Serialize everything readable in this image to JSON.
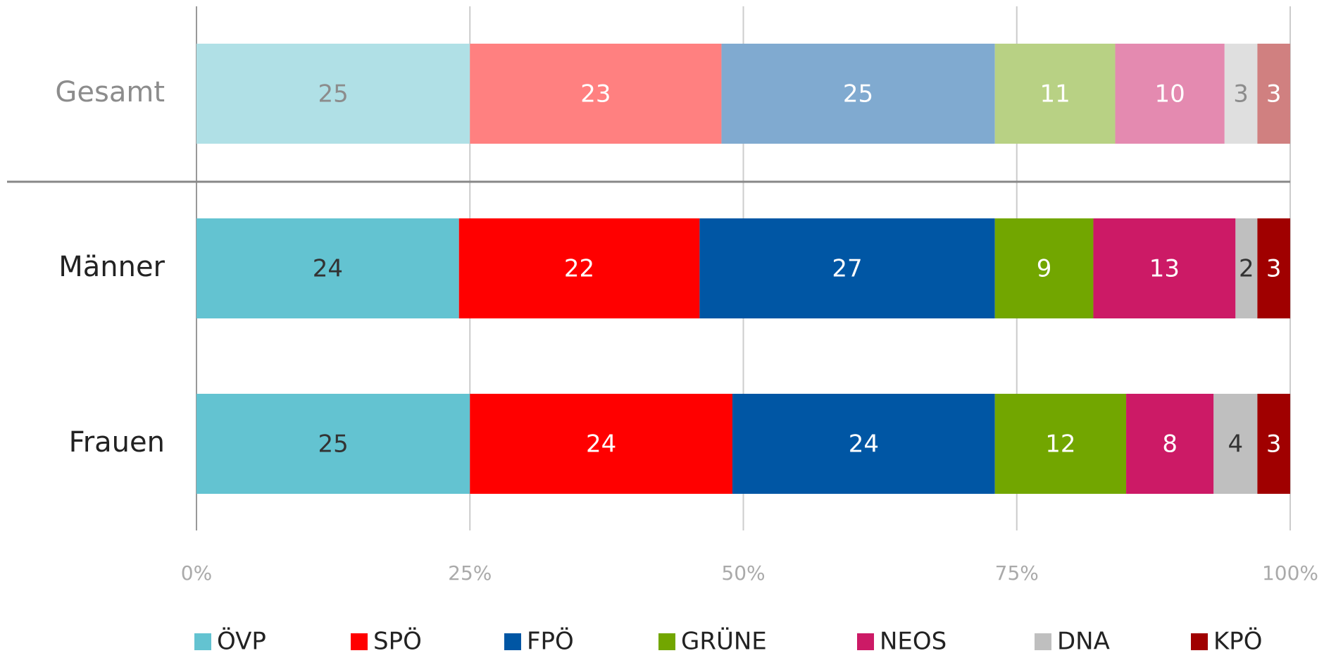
{
  "chart_data": {
    "type": "stacked_barh",
    "categories": [
      "Gesamt",
      "Männer",
      "Frauen"
    ],
    "series": [
      {
        "name": "ÖVP",
        "color": "#63c3d1",
        "light_color": "#b0e0e6",
        "values": [
          25,
          24,
          25
        ]
      },
      {
        "name": "SPÖ",
        "color": "#ff0000",
        "light_color": "#ff8080",
        "values": [
          23,
          22,
          24
        ]
      },
      {
        "name": "FPÖ",
        "color": "#0056a4",
        "light_color": "#80aad0",
        "values": [
          25,
          27,
          24
        ]
      },
      {
        "name": "GRÜNE",
        "color": "#72a600",
        "light_color": "#b8d184",
        "values": [
          11,
          9,
          12
        ]
      },
      {
        "name": "NEOS",
        "color": "#cc1a66",
        "light_color": "#e48ab0",
        "values": [
          10,
          13,
          8
        ]
      },
      {
        "name": "DNA",
        "color": "#bfbfbf",
        "light_color": "#dfdfdf",
        "values": [
          3,
          2,
          4
        ]
      },
      {
        "name": "KPÖ",
        "color": "#a00000",
        "light_color": "#d08080",
        "values": [
          3,
          3,
          3
        ]
      }
    ],
    "xlim": [
      0,
      100
    ],
    "xticks": [
      {
        "value": 0,
        "label": "0%"
      },
      {
        "value": 25,
        "label": "25%"
      },
      {
        "value": 50,
        "label": "50%"
      },
      {
        "value": 75,
        "label": "75%"
      },
      {
        "value": 100,
        "label": "100%"
      }
    ],
    "grid": true,
    "legend": "bottom"
  }
}
